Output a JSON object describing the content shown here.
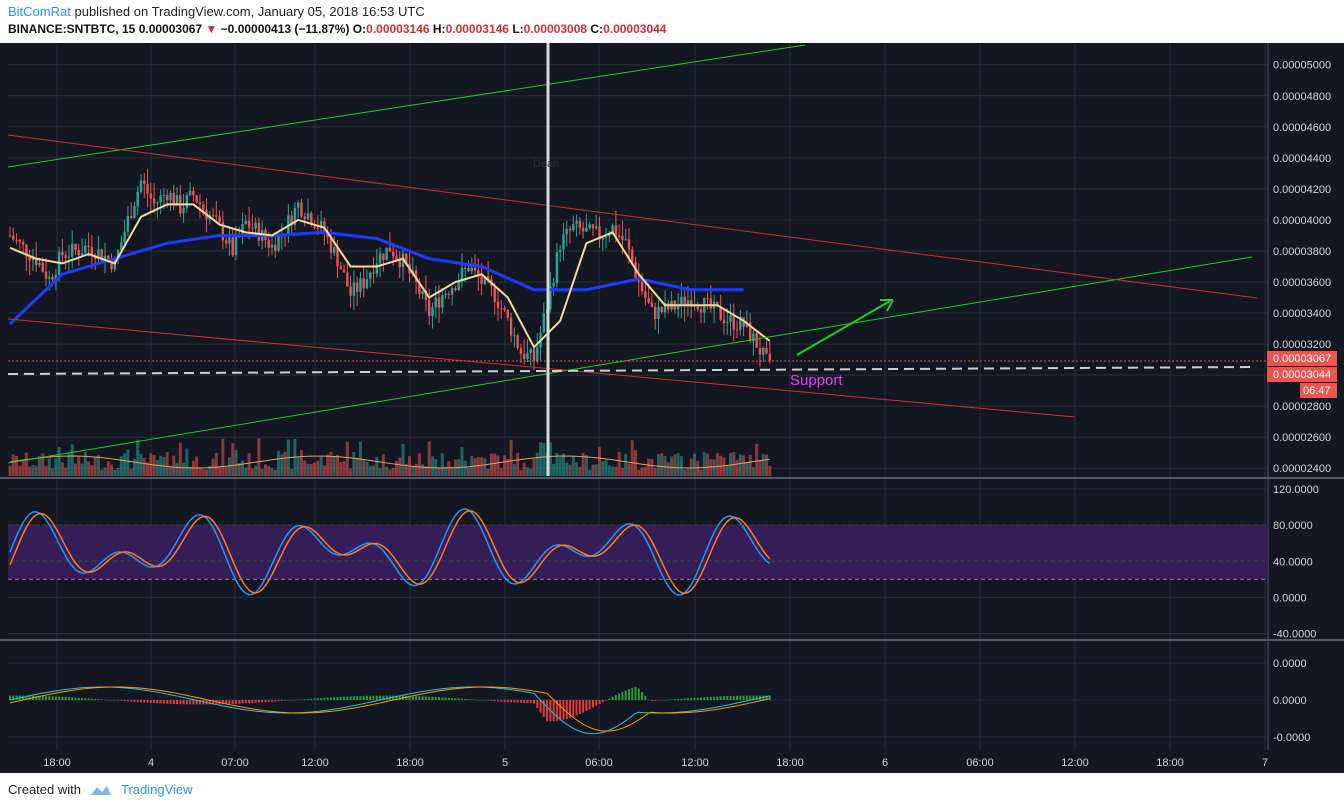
{
  "header": {
    "author": "BitComRat",
    "published": "published on TradingView.com, January 05, 2018 16:53 UTC",
    "symbol": "BINANCE:SNTBTC, 15",
    "last": "0.00003067",
    "change": "−0.00000413 (−11.87%)",
    "o_label": "O:",
    "o_value": "0.00003146",
    "h_label": "H:",
    "h_value": "0.00003146",
    "l_label": "L:",
    "l_value": "0.00003008",
    "c_label": "C:",
    "c_value": "0.00003044"
  },
  "footer": {
    "created": "Created with",
    "brand": "TradingView"
  },
  "colors": {
    "background": "#131722",
    "bull": "#26a69a",
    "bear": "#ef5350",
    "ma_fast": "#f5d99a",
    "ma_slow": "#1e3cff",
    "trend_green": "#22cc22",
    "trend_red": "#d32f2f",
    "support_text": "#e040fb"
  },
  "chart_data": [
    {
      "type": "candlestick",
      "y_ticks": [
        "0.00005000",
        "0.00004800",
        "0.00004600",
        "0.00004400",
        "0.00004200",
        "0.00004000",
        "0.00003800",
        "0.00003600",
        "0.00003400",
        "0.00003200",
        "0.00003000",
        "0.00002800",
        "0.00002600",
        "0.00002400"
      ],
      "x_ticks": [
        "18:00",
        "4",
        "07:00",
        "12:00",
        "18:00",
        "5",
        "06:00",
        "12:00",
        "18:00",
        "6",
        "06:00",
        "12:00",
        "18:00",
        "7"
      ],
      "ylim": [
        2.35e-05,
        5.14e-05
      ],
      "price_labels": [
        "0.00003067",
        "0.00003044"
      ],
      "countdown": "06:47",
      "event_marker": "Dean",
      "annotations": [
        "Support"
      ],
      "close_path": [
        [
          0,
          3.9e-05
        ],
        [
          2,
          3.82e-05
        ],
        [
          4,
          3.75e-05
        ],
        [
          6,
          3.62e-05
        ],
        [
          8,
          3.78e-05
        ],
        [
          10,
          3.8e-05
        ],
        [
          12,
          3.83e-05
        ],
        [
          14,
          3.78e-05
        ],
        [
          16,
          3.72e-05
        ],
        [
          18,
          4e-05
        ],
        [
          20,
          4.25e-05
        ],
        [
          22,
          4.1e-05
        ],
        [
          24,
          4.18e-05
        ],
        [
          26,
          4.08e-05
        ],
        [
          28,
          4.16e-05
        ],
        [
          30,
          4.05e-05
        ],
        [
          32,
          3.95e-05
        ],
        [
          34,
          3.8e-05
        ],
        [
          36,
          3.98e-05
        ],
        [
          38,
          3.92e-05
        ],
        [
          40,
          3.83e-05
        ],
        [
          42,
          3.95e-05
        ],
        [
          44,
          4.1e-05
        ],
        [
          46,
          4.02e-05
        ],
        [
          48,
          3.92e-05
        ],
        [
          50,
          3.75e-05
        ],
        [
          52,
          3.52e-05
        ],
        [
          54,
          3.6e-05
        ],
        [
          56,
          3.75e-05
        ],
        [
          58,
          3.82e-05
        ],
        [
          60,
          3.73e-05
        ],
        [
          62,
          3.58e-05
        ],
        [
          64,
          3.4e-05
        ],
        [
          66,
          3.52e-05
        ],
        [
          68,
          3.6e-05
        ],
        [
          70,
          3.7e-05
        ],
        [
          72,
          3.6e-05
        ],
        [
          74,
          3.52e-05
        ],
        [
          76,
          3.35e-05
        ],
        [
          78,
          3.15e-05
        ],
        [
          80,
          3.1e-05
        ],
        [
          82,
          3.45e-05
        ],
        [
          84,
          3.85e-05
        ],
        [
          86,
          3.95e-05
        ],
        [
          88,
          3.92e-05
        ],
        [
          90,
          3.9e-05
        ],
        [
          92,
          3.95e-05
        ],
        [
          94,
          3.85e-05
        ],
        [
          96,
          3.6e-05
        ],
        [
          98,
          3.4e-05
        ],
        [
          100,
          3.42e-05
        ],
        [
          102,
          3.45e-05
        ],
        [
          104,
          3.5e-05
        ],
        [
          106,
          3.45e-05
        ],
        [
          108,
          3.4e-05
        ],
        [
          110,
          3.35e-05
        ],
        [
          112,
          3.32e-05
        ],
        [
          114,
          3.2e-05
        ],
        [
          116,
          3.04e-05
        ]
      ],
      "ma_fast_path": [
        [
          0,
          3.82e-05
        ],
        [
          4,
          3.75e-05
        ],
        [
          8,
          3.72e-05
        ],
        [
          12,
          3.78e-05
        ],
        [
          16,
          3.72e-05
        ],
        [
          20,
          4.02e-05
        ],
        [
          24,
          4.1e-05
        ],
        [
          28,
          4.1e-05
        ],
        [
          32,
          3.97e-05
        ],
        [
          36,
          3.92e-05
        ],
        [
          40,
          3.9e-05
        ],
        [
          44,
          4e-05
        ],
        [
          48,
          3.95e-05
        ],
        [
          52,
          3.7e-05
        ],
        [
          56,
          3.7e-05
        ],
        [
          60,
          3.75e-05
        ],
        [
          64,
          3.5e-05
        ],
        [
          68,
          3.6e-05
        ],
        [
          72,
          3.65e-05
        ],
        [
          76,
          3.5e-05
        ],
        [
          80,
          3.18e-05
        ],
        [
          84,
          3.35e-05
        ],
        [
          88,
          3.85e-05
        ],
        [
          92,
          3.92e-05
        ],
        [
          96,
          3.65e-05
        ],
        [
          100,
          3.45e-05
        ],
        [
          104,
          3.45e-05
        ],
        [
          108,
          3.45e-05
        ],
        [
          112,
          3.35e-05
        ],
        [
          116,
          3.22e-05
        ]
      ],
      "ma_slow_path": [
        [
          0,
          3.33e-05
        ],
        [
          8,
          3.65e-05
        ],
        [
          16,
          3.75e-05
        ],
        [
          24,
          3.85e-05
        ],
        [
          32,
          3.9e-05
        ],
        [
          40,
          3.9e-05
        ],
        [
          48,
          3.92e-05
        ],
        [
          56,
          3.88e-05
        ],
        [
          64,
          3.75e-05
        ],
        [
          72,
          3.7e-05
        ],
        [
          80,
          3.55e-05
        ],
        [
          88,
          3.55e-05
        ],
        [
          96,
          3.62e-05
        ],
        [
          104,
          3.55e-05
        ],
        [
          112,
          3.55e-05
        ]
      ]
    },
    {
      "type": "line",
      "name": "stochastic",
      "y_ticks": [
        "120.0000",
        "80.0000",
        "40.0000",
        "0.0000",
        "-40.0000"
      ],
      "ylim": [
        -45,
        130
      ],
      "band": [
        20,
        80
      ]
    },
    {
      "type": "line",
      "name": "macd",
      "y_ticks": [
        "0.0000",
        "0.0000",
        "-0.0000"
      ]
    }
  ]
}
